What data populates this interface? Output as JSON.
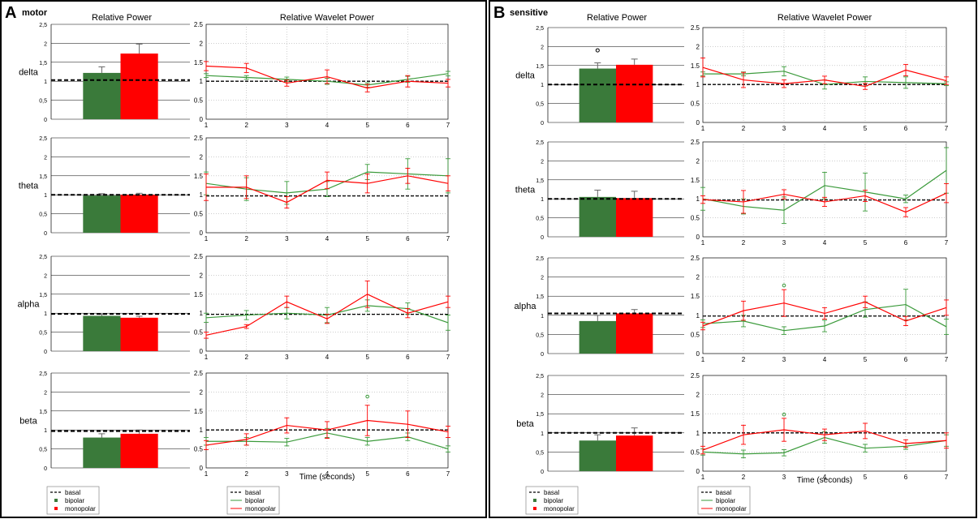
{
  "colors": {
    "bipolar": "#3a7a3a",
    "monopolar": "#ff0000",
    "basal": "#000000",
    "grid": "#b0b0b0",
    "frame": "#000000"
  },
  "panels": [
    {
      "letter": "A",
      "title": "motor",
      "bar_header": "Relative Power",
      "line_header": "Relative Wavelet Power",
      "xlabel": "Time (seconds)",
      "legend_bar": [
        "basal",
        "bipolar",
        "monopolar"
      ],
      "legend_line": [
        "basal",
        "bipolar",
        "monopolar"
      ]
    },
    {
      "letter": "B",
      "title": "sensitive",
      "bar_header": "Relative Power",
      "line_header": "Relative Wavelet Power",
      "xlabel": "Time (seconds)",
      "legend_bar": [
        "basal",
        "bipolar",
        "monopolar"
      ],
      "legend_line": [
        "basal",
        "bipolar",
        "monopolar"
      ]
    }
  ],
  "chart_data": [
    {
      "type": "bar",
      "panel": "A",
      "band": "delta",
      "categories": [
        "bipolar",
        "monopolar"
      ],
      "values": [
        1.22,
        1.73
      ],
      "errors": [
        0.16,
        0.25
      ],
      "basal": 1.03,
      "ylim": [
        0,
        2.5
      ],
      "yticks": [
        "0",
        "0,5",
        "1",
        "1,5",
        "2",
        "2,5"
      ]
    },
    {
      "type": "line",
      "panel": "A",
      "band": "delta",
      "x": [
        1,
        2,
        3,
        4,
        5,
        6,
        7
      ],
      "ylim": [
        0,
        2.5
      ],
      "yticks": [
        "0",
        "0.5",
        "1",
        "1.5",
        "2",
        "2.5"
      ],
      "basal": 1.0,
      "series": [
        {
          "name": "bipolar",
          "values": [
            1.15,
            1.1,
            1.05,
            1.0,
            0.9,
            1.05,
            1.2
          ],
          "errors": [
            0.05,
            0.05,
            0.06,
            0.08,
            0.06,
            0.08,
            0.06
          ]
        },
        {
          "name": "monopolar",
          "values": [
            1.4,
            1.35,
            0.95,
            1.12,
            0.82,
            1.0,
            0.95
          ],
          "errors": [
            0.12,
            0.12,
            0.08,
            0.18,
            0.1,
            0.15,
            0.1
          ]
        }
      ]
    },
    {
      "type": "bar",
      "panel": "A",
      "band": "theta",
      "categories": [
        "bipolar",
        "monopolar"
      ],
      "values": [
        0.98,
        1.0
      ],
      "errors": [
        0.05,
        0.04
      ],
      "basal": 1.0,
      "ylim": [
        0,
        2.5
      ],
      "yticks": [
        "0",
        "0,5",
        "1",
        "1,5",
        "2",
        "2,5"
      ]
    },
    {
      "type": "line",
      "panel": "A",
      "band": "theta",
      "x": [
        1,
        2,
        3,
        4,
        5,
        6,
        7
      ],
      "ylim": [
        0,
        2.5
      ],
      "yticks": [
        "0",
        "0.5",
        "1",
        "1.5",
        "2",
        "2.5"
      ],
      "basal": 0.97,
      "series": [
        {
          "name": "bipolar",
          "values": [
            1.3,
            1.15,
            1.05,
            1.15,
            1.6,
            1.55,
            1.5
          ],
          "errors": [
            0.3,
            0.3,
            0.3,
            0.2,
            0.2,
            0.4,
            0.45
          ]
        },
        {
          "name": "monopolar",
          "values": [
            1.2,
            1.2,
            0.8,
            1.38,
            1.3,
            1.5,
            1.3
          ],
          "errors": [
            0.35,
            0.3,
            0.15,
            0.22,
            0.25,
            0.2,
            0.2
          ]
        }
      ]
    },
    {
      "type": "bar",
      "panel": "A",
      "band": "alpha",
      "categories": [
        "bipolar",
        "monopolar"
      ],
      "values": [
        0.93,
        0.88
      ],
      "errors": [
        0.04,
        0.04
      ],
      "basal": 0.98,
      "ylim": [
        0,
        2.5
      ],
      "yticks": [
        "0",
        "0,5",
        "1",
        "1,5",
        "2",
        "2,5"
      ]
    },
    {
      "type": "line",
      "panel": "A",
      "band": "alpha",
      "x": [
        1,
        2,
        3,
        4,
        5,
        6,
        7
      ],
      "ylim": [
        0,
        2.5
      ],
      "yticks": [
        "0",
        "0.5",
        "1",
        "1.5",
        "2",
        "2.5"
      ],
      "basal": 0.97,
      "series": [
        {
          "name": "bipolar",
          "values": [
            0.88,
            0.95,
            1.0,
            0.95,
            1.2,
            1.12,
            0.75
          ],
          "errors": [
            0.12,
            0.12,
            0.15,
            0.2,
            0.15,
            0.15,
            0.2
          ]
        },
        {
          "name": "monopolar",
          "values": [
            0.42,
            0.65,
            1.3,
            0.85,
            1.5,
            1.0,
            1.3
          ],
          "errors": [
            0.08,
            0.05,
            0.15,
            0.12,
            0.35,
            0.12,
            0.15
          ]
        }
      ]
    },
    {
      "type": "bar",
      "panel": "A",
      "band": "beta",
      "categories": [
        "bipolar",
        "monopolar"
      ],
      "values": [
        0.8,
        0.9
      ],
      "errors": [
        0.1,
        0.1
      ],
      "basal": 0.97,
      "ylim": [
        0,
        2.5
      ],
      "yticks": [
        "0",
        "0,5",
        "1",
        "1,5",
        "2",
        "2,5"
      ]
    },
    {
      "type": "line",
      "panel": "A",
      "band": "beta",
      "x": [
        1,
        2,
        3,
        4,
        5,
        6,
        7
      ],
      "ylim": [
        0,
        2.5
      ],
      "yticks": [
        "0",
        "0.5",
        "1",
        "1.5",
        "2",
        "2.5"
      ],
      "basal": 1.0,
      "series": [
        {
          "name": "bipolar",
          "values": [
            0.7,
            0.7,
            0.68,
            0.92,
            0.7,
            0.82,
            0.5
          ],
          "errors": [
            0.1,
            0.1,
            0.1,
            0.12,
            0.1,
            0.1,
            0.08
          ]
        },
        {
          "name": "monopolar",
          "values": [
            0.6,
            0.75,
            1.12,
            1.0,
            1.25,
            1.15,
            0.95
          ],
          "errors": [
            0.12,
            0.15,
            0.2,
            0.22,
            0.4,
            0.35,
            0.15
          ]
        }
      ],
      "outliers": [
        {
          "series": "bipolar",
          "x": 5,
          "y": 1.88
        }
      ]
    },
    {
      "type": "bar",
      "panel": "B",
      "band": "delta",
      "categories": [
        "bipolar",
        "monopolar"
      ],
      "values": [
        1.42,
        1.52
      ],
      "errors": [
        0.15,
        0.15
      ],
      "basal": 1.0,
      "ylim": [
        0,
        2.5
      ],
      "yticks": [
        "0",
        "0,5",
        "1",
        "1,5",
        "2",
        "2,5"
      ],
      "outliers": [
        {
          "series": "bipolar",
          "y": 1.9
        }
      ]
    },
    {
      "type": "line",
      "panel": "B",
      "band": "delta",
      "x": [
        1,
        2,
        3,
        4,
        5,
        6,
        7
      ],
      "ylim": [
        0,
        2.5
      ],
      "yticks": [
        "0",
        "0.5",
        "1",
        "1.5",
        "2",
        "2.5"
      ],
      "basal": 1.0,
      "series": [
        {
          "name": "bipolar",
          "values": [
            1.28,
            1.28,
            1.35,
            1.0,
            1.08,
            1.05,
            1.02
          ],
          "errors": [
            0.05,
            0.05,
            0.12,
            0.12,
            0.12,
            0.15,
            0.05
          ]
        },
        {
          "name": "monopolar",
          "values": [
            1.45,
            1.12,
            1.02,
            1.12,
            0.95,
            1.38,
            1.1
          ],
          "errors": [
            0.25,
            0.2,
            0.1,
            0.1,
            0.08,
            0.15,
            0.1
          ]
        }
      ]
    },
    {
      "type": "bar",
      "panel": "B",
      "band": "theta",
      "categories": [
        "bipolar",
        "monopolar"
      ],
      "values": [
        1.05,
        1.02
      ],
      "errors": [
        0.18,
        0.18
      ],
      "basal": 1.0,
      "ylim": [
        0,
        2.5
      ],
      "yticks": [
        "0",
        "0,5",
        "1",
        "1,5",
        "2",
        "2,5"
      ]
    },
    {
      "type": "line",
      "panel": "B",
      "band": "theta",
      "x": [
        1,
        2,
        3,
        4,
        5,
        6,
        7
      ],
      "ylim": [
        0,
        2.5
      ],
      "yticks": [
        "0",
        "0.5",
        "1",
        "1.5",
        "2",
        "2.5"
      ],
      "basal": 0.97,
      "series": [
        {
          "name": "bipolar",
          "values": [
            1.0,
            0.8,
            0.7,
            1.35,
            1.18,
            1.0,
            1.75
          ],
          "errors": [
            0.3,
            0.2,
            0.35,
            0.35,
            0.5,
            0.1,
            0.6
          ]
        },
        {
          "name": "monopolar",
          "values": [
            0.98,
            0.92,
            1.12,
            0.92,
            1.08,
            0.65,
            1.15
          ],
          "errors": [
            0.1,
            0.3,
            0.12,
            0.12,
            0.15,
            0.12,
            0.25
          ]
        }
      ]
    },
    {
      "type": "bar",
      "panel": "B",
      "band": "alpha",
      "categories": [
        "bipolar",
        "monopolar"
      ],
      "values": [
        0.85,
        1.05
      ],
      "errors": [
        0.15,
        0.1
      ],
      "basal": 1.05,
      "ylim": [
        0,
        2.5
      ],
      "yticks": [
        "0",
        "0,5",
        "1",
        "1,5",
        "2",
        "2,5"
      ]
    },
    {
      "type": "line",
      "panel": "B",
      "band": "alpha",
      "x": [
        1,
        2,
        3,
        4,
        5,
        6,
        7
      ],
      "ylim": [
        0,
        2.5
      ],
      "yticks": [
        "0",
        "0.5",
        "1",
        "1.5",
        "2",
        "2.5"
      ],
      "basal": 0.98,
      "series": [
        {
          "name": "bipolar",
          "values": [
            0.78,
            0.85,
            0.6,
            0.72,
            1.15,
            1.28,
            0.7
          ],
          "errors": [
            0.1,
            0.15,
            0.1,
            0.15,
            0.2,
            0.4,
            0.2
          ]
        },
        {
          "name": "monopolar",
          "values": [
            0.72,
            1.12,
            1.32,
            1.05,
            1.35,
            0.85,
            1.2
          ],
          "errors": [
            0.1,
            0.25,
            0.35,
            0.15,
            0.15,
            0.12,
            0.2
          ]
        }
      ],
      "outliers": [
        {
          "series": "bipolar",
          "x": 3,
          "y": 1.78
        }
      ]
    },
    {
      "type": "bar",
      "panel": "B",
      "band": "beta",
      "categories": [
        "bipolar",
        "monopolar"
      ],
      "values": [
        0.8,
        0.93
      ],
      "errors": [
        0.15,
        0.2
      ],
      "basal": 1.0,
      "ylim": [
        0,
        2.5
      ],
      "yticks": [
        "0",
        "0,5",
        "1",
        "1,5",
        "2",
        "2,5"
      ]
    },
    {
      "type": "line",
      "panel": "B",
      "band": "beta",
      "x": [
        1,
        2,
        3,
        4,
        5,
        6,
        7
      ],
      "ylim": [
        0,
        2.5
      ],
      "yticks": [
        "0",
        "0.5",
        "1",
        "1.5",
        "2",
        "2.5"
      ],
      "basal": 1.0,
      "series": [
        {
          "name": "bipolar",
          "values": [
            0.5,
            0.45,
            0.48,
            0.88,
            0.6,
            0.65,
            0.8
          ],
          "errors": [
            0.08,
            0.1,
            0.08,
            0.15,
            0.1,
            0.08,
            0.15
          ]
        },
        {
          "name": "monopolar",
          "values": [
            0.55,
            0.95,
            1.08,
            0.95,
            1.05,
            0.72,
            0.8
          ],
          "errors": [
            0.1,
            0.25,
            0.3,
            0.15,
            0.2,
            0.1,
            0.2
          ]
        }
      ],
      "outliers": [
        {
          "series": "bipolar",
          "x": 3,
          "y": 1.48
        }
      ]
    }
  ]
}
